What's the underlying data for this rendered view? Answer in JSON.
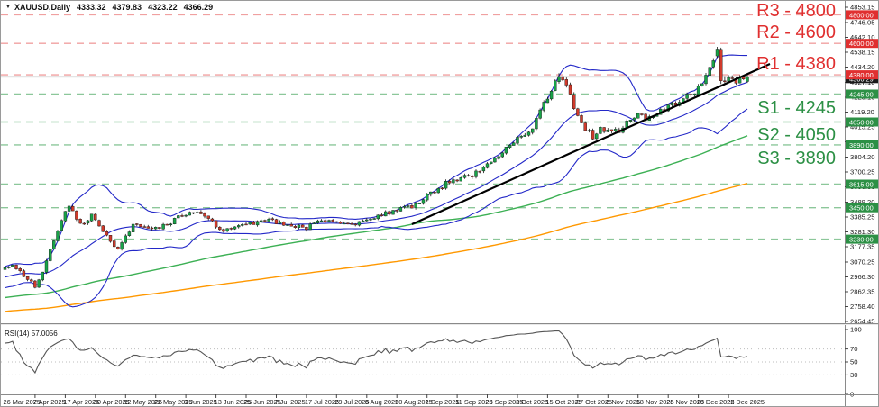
{
  "window": {
    "symbol": "XAUUSD,Daily",
    "open": "4333.32",
    "high": "4379.83",
    "low": "4323.22",
    "close": "4366.29"
  },
  "rsi": {
    "label": "RSI(14) 57.0056",
    "value": 57.0056,
    "period": 14,
    "axis_labels": [
      100,
      70,
      50,
      30,
      0
    ],
    "dotted_levels": [
      70,
      50,
      30
    ]
  },
  "time_axis": {
    "labels": [
      "26 Mar 2025",
      "7 Apr 2025",
      "17 Apr 2025",
      "30 Apr 2025",
      "12 May 2025",
      "22 May 2025",
      "3 Jun 2025",
      "13 Jun 2025",
      "25 Jun 2025",
      "7 Jul 2025",
      "17 Jul 2025",
      "29 Jul 2025",
      "8 Aug 2025",
      "20 Aug 2025",
      "1 Sep 2025",
      "11 Sep 2025",
      "23 Sep 2025",
      "3 Oct 2025",
      "15 Oct 2025",
      "27 Oct 2025",
      "6 Nov 2025",
      "18 Nov 2025",
      "28 Nov 2025",
      "10 Dec 2025",
      "22 Dec 2025"
    ],
    "bars_per_label": 8
  },
  "price_axis": {
    "current_price_badge": "4366.29"
  },
  "chart_data": {
    "type": "candlestick",
    "symbol": "XAUUSD",
    "timeframe": "Daily",
    "title": "XAUUSD,Daily 4333.32 4379.83 4323.22 4366.29",
    "last_ohlc": {
      "open": 4333.32,
      "high": 4379.83,
      "low": 4323.22,
      "close": 4366.29
    },
    "current_price": 4366.29,
    "y_ticks": [
      4853.15,
      4746.05,
      4642.1,
      4538.15,
      4434.2,
      4327.1,
      4223.15,
      4119.2,
      4015.25,
      3911.3,
      3804.2,
      3700.25,
      3596.3,
      3489.2,
      3385.25,
      3281.3,
      3177.35,
      3070.25,
      2966.3,
      2862.35,
      2758.4,
      2654.45
    ],
    "levels": {
      "resistance": [
        {
          "id": "R3",
          "price": 4800,
          "label": "R3 - 4800",
          "badge": "4800.00"
        },
        {
          "id": "R2",
          "price": 4600,
          "label": "R2 - 4600",
          "badge": "4600.00"
        },
        {
          "id": "R1",
          "price": 4380,
          "label": "R1 - 4380",
          "badge": "4380.00"
        }
      ],
      "support": [
        {
          "id": "S1",
          "price": 4245,
          "label": "S1 - 4245",
          "badge": "4245.00"
        },
        {
          "id": "S2",
          "price": 4050,
          "label": "S2 - 4050",
          "badge": "4050.00"
        },
        {
          "id": "S3",
          "price": 3890,
          "label": "S3 - 3890",
          "badge": "3890.00"
        },
        {
          "id": "",
          "price": 3615,
          "label": "",
          "badge": "3615.00"
        },
        {
          "id": "",
          "price": 3450,
          "label": "",
          "badge": "3450.00"
        },
        {
          "id": "",
          "price": 3230,
          "label": "",
          "badge": "3230.00"
        }
      ]
    },
    "trendline": {
      "points": [
        [
          108,
          3335
        ],
        [
          203,
          4456
        ]
      ]
    },
    "indicators": [
      {
        "name": "Bollinger Bands",
        "period": 20,
        "deviation": 2
      },
      {
        "name": "MA fast",
        "period": 100
      },
      {
        "name": "MA slow",
        "period": 200
      },
      {
        "name": "RSI",
        "period": 14,
        "value": 57.0056
      }
    ],
    "visible_range": {
      "start": 0,
      "end": 197
    },
    "price_path_anchors": [
      [
        -210,
        2560
      ],
      [
        -170,
        2600
      ],
      [
        -130,
        2650
      ],
      [
        -95,
        2700
      ],
      [
        -65,
        2760
      ],
      [
        -40,
        2830
      ],
      [
        -22,
        2900
      ],
      [
        -10,
        2960
      ],
      [
        -4,
        3000
      ],
      [
        0,
        3025
      ],
      [
        2,
        3055
      ],
      [
        4,
        3010
      ],
      [
        6,
        2950
      ],
      [
        8,
        2905
      ],
      [
        10,
        2995
      ],
      [
        13,
        3230
      ],
      [
        15,
        3360
      ],
      [
        17,
        3470
      ],
      [
        19,
        3380
      ],
      [
        21,
        3330
      ],
      [
        23,
        3420
      ],
      [
        25,
        3330
      ],
      [
        27,
        3245
      ],
      [
        30,
        3160
      ],
      [
        32,
        3250
      ],
      [
        34,
        3320
      ],
      [
        36,
        3330
      ],
      [
        38,
        3305
      ],
      [
        40,
        3300
      ],
      [
        42,
        3330
      ],
      [
        44,
        3345
      ],
      [
        46,
        3380
      ],
      [
        48,
        3395
      ],
      [
        50,
        3425
      ],
      [
        52,
        3405
      ],
      [
        54,
        3380
      ],
      [
        56,
        3330
      ],
      [
        58,
        3285
      ],
      [
        60,
        3310
      ],
      [
        62,
        3335
      ],
      [
        66,
        3340
      ],
      [
        70,
        3358
      ],
      [
        74,
        3342
      ],
      [
        78,
        3318
      ],
      [
        80,
        3312
      ],
      [
        82,
        3348
      ],
      [
        86,
        3372
      ],
      [
        88,
        3352
      ],
      [
        90,
        3338
      ],
      [
        93,
        3332
      ],
      [
        96,
        3360
      ],
      [
        98,
        3388
      ],
      [
        100,
        3402
      ],
      [
        102,
        3416
      ],
      [
        104,
        3438
      ],
      [
        107,
        3450
      ],
      [
        110,
        3478
      ],
      [
        112,
        3528
      ],
      [
        114,
        3568
      ],
      [
        116,
        3602
      ],
      [
        118,
        3638
      ],
      [
        120,
        3652
      ],
      [
        122,
        3668
      ],
      [
        124,
        3672
      ],
      [
        126,
        3712
      ],
      [
        128,
        3758
      ],
      [
        130,
        3792
      ],
      [
        132,
        3838
      ],
      [
        134,
        3882
      ],
      [
        136,
        3928
      ],
      [
        138,
        3962
      ],
      [
        140,
        4008
      ],
      [
        142,
        4128
      ],
      [
        144,
        4218
      ],
      [
        146,
        4330
      ],
      [
        147,
        4365
      ],
      [
        148,
        4338
      ],
      [
        149,
        4295
      ],
      [
        150,
        4240
      ],
      [
        151,
        4152
      ],
      [
        152,
        4078
      ],
      [
        153,
        4032
      ],
      [
        155,
        3978
      ],
      [
        156,
        3948
      ],
      [
        157,
        3972
      ],
      [
        158,
        4005
      ],
      [
        160,
        3992
      ],
      [
        162,
        3985
      ],
      [
        164,
        4002
      ],
      [
        166,
        4078
      ],
      [
        168,
        4115
      ],
      [
        170,
        4062
      ],
      [
        172,
        4098
      ],
      [
        174,
        4132
      ],
      [
        176,
        4158
      ],
      [
        178,
        4185
      ],
      [
        180,
        4212
      ],
      [
        182,
        4242
      ],
      [
        184,
        4288
      ],
      [
        186,
        4375
      ],
      [
        187,
        4420
      ],
      [
        188,
        4498
      ],
      [
        189,
        4558
      ],
      [
        190,
        4340
      ],
      [
        192,
        4352
      ],
      [
        194,
        4338
      ],
      [
        196,
        4352
      ],
      [
        197,
        4366
      ]
    ],
    "candle_overrides": [
      [
        147,
        4332,
        4392,
        4318,
        4368
      ],
      [
        189,
        4512,
        4576,
        4498,
        4560
      ],
      [
        190,
        4558,
        4570,
        4316,
        4338
      ],
      [
        197,
        4333.32,
        4379.83,
        4323.22,
        4366.29
      ]
    ],
    "gen": {
      "seed": 42,
      "start": -210,
      "noise": 0.009,
      "wick": 0.004,
      "gap": 0.002
    }
  },
  "colors": {
    "bull": "#18a348",
    "bear": "#d03a2b",
    "wick": "#1a1a1a",
    "bollinger": "#2328c8",
    "ma_fast": "#3cb054",
    "ma_slow": "#ff9800",
    "resistance_text": "#e03030",
    "resistance_line": "#f0a0a0",
    "support_text": "#2c9045",
    "support_line": "#8cc79a",
    "trendline": "#000000",
    "current_price_line": "#c8c8c8",
    "current_badge_bg": "#1a1a1a",
    "rsi_line": "#555555",
    "axis_text": "#1a1a1a",
    "border": "#8a8a8a"
  }
}
